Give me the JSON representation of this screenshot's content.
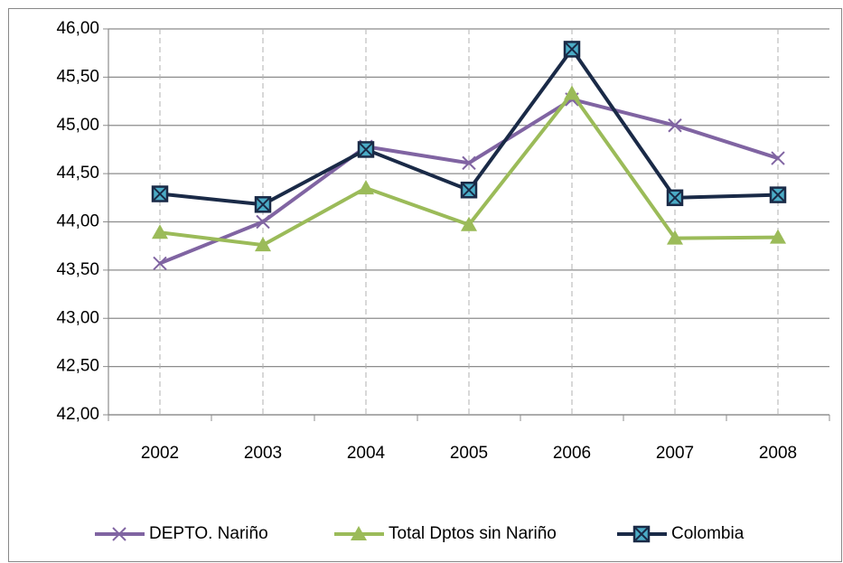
{
  "chart_data": {
    "type": "line",
    "categories": [
      "2002",
      "2003",
      "2004",
      "2005",
      "2006",
      "2007",
      "2008"
    ],
    "series": [
      {
        "name": "DEPTO. Nariño",
        "color": "#8064a2",
        "marker": "x",
        "values": [
          43.57,
          44.0,
          44.78,
          44.61,
          45.27,
          45.0,
          44.66
        ]
      },
      {
        "name": "Total Dptos sin Nariño",
        "color": "#9bbb59",
        "marker": "triangle",
        "values": [
          43.89,
          43.76,
          44.35,
          43.97,
          45.33,
          43.83,
          43.84
        ]
      },
      {
        "name": "Colombia",
        "color": "#1a2a47",
        "marker": "square-x",
        "values": [
          44.29,
          44.18,
          44.75,
          44.33,
          45.79,
          44.25,
          44.28
        ]
      }
    ],
    "ylim": [
      42,
      46
    ],
    "yticks": [
      {
        "value": 42,
        "label": "42,00"
      },
      {
        "value": 42.5,
        "label": "42,50"
      },
      {
        "value": 43,
        "label": "43,00"
      },
      {
        "value": 43.5,
        "label": "43,50"
      },
      {
        "value": 44,
        "label": "44,00"
      },
      {
        "value": 44.5,
        "label": "44,50"
      },
      {
        "value": 45,
        "label": "45,00"
      },
      {
        "value": 45.5,
        "label": "45,50"
      },
      {
        "value": 46,
        "label": "46,00"
      }
    ],
    "grid": true,
    "legend": "bottom"
  }
}
